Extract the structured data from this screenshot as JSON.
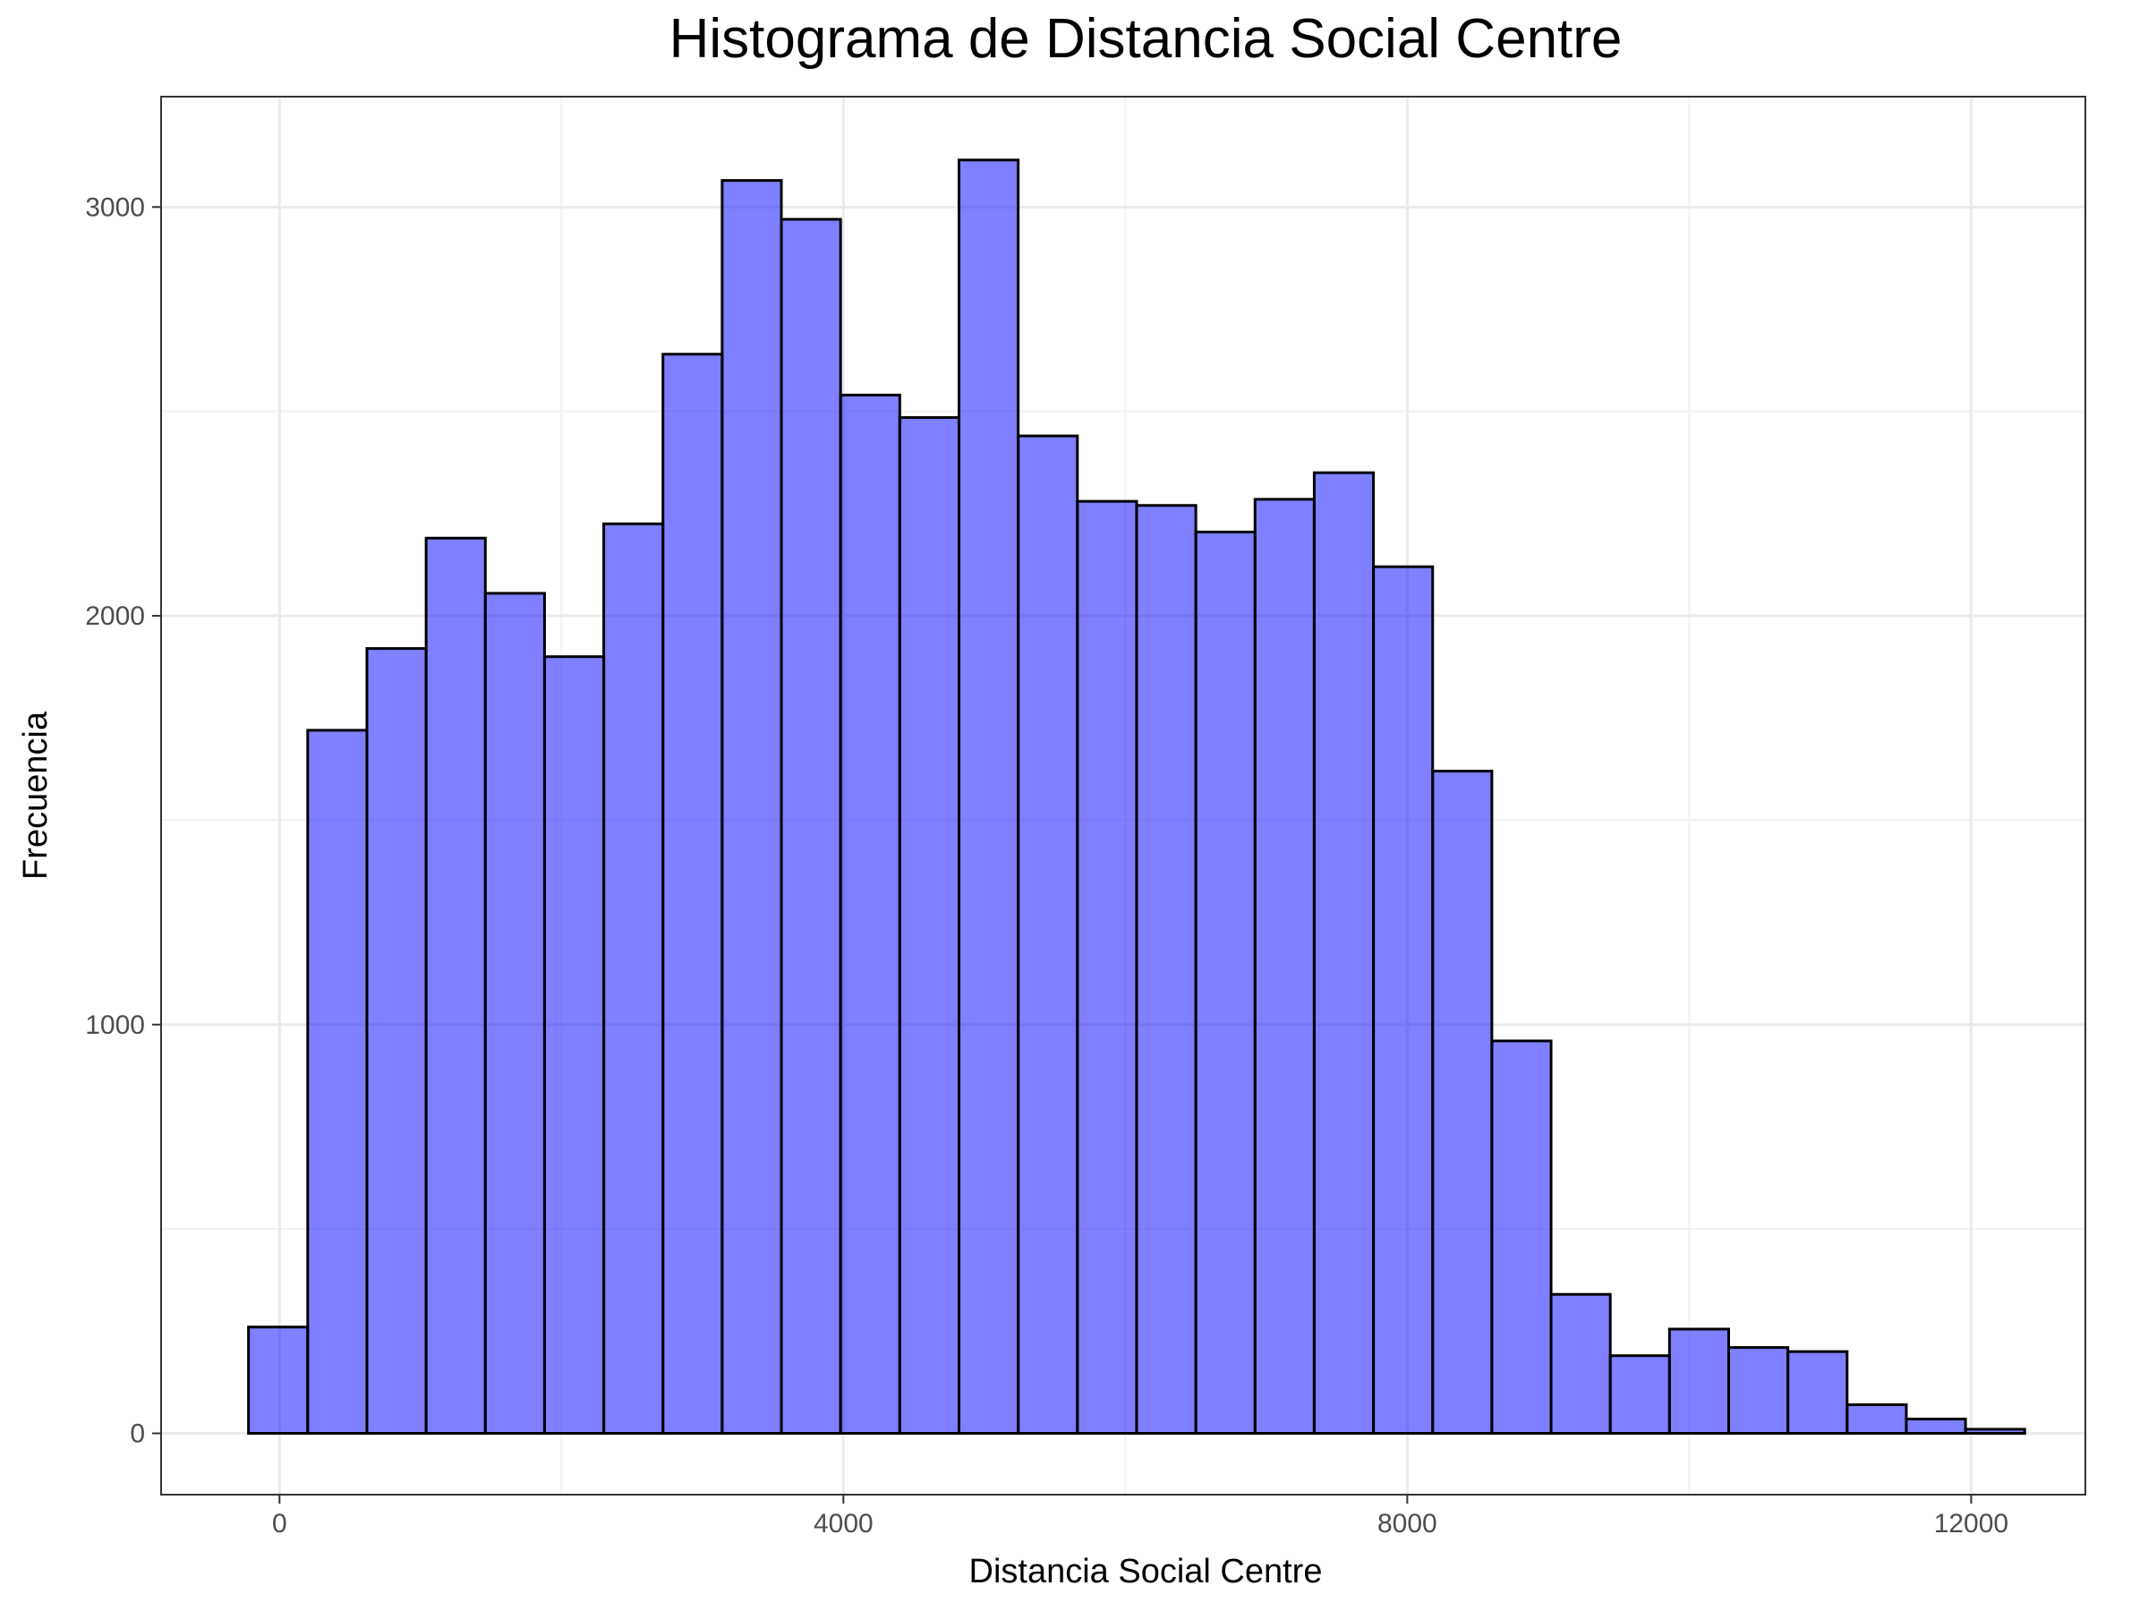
{
  "chart_data": {
    "type": "bar",
    "title": "Histograma de Distancia Social Centre",
    "xlabel": "Distancia Social Centre",
    "ylabel": "Frecuencia",
    "xlim": [
      -840,
      12810
    ],
    "ylim": [
      -150,
      3270
    ],
    "x_ticks": [
      0,
      4000,
      8000,
      12000
    ],
    "x_tick_labels": [
      "0",
      "4000",
      "8000",
      "12000"
    ],
    "x_minor_ticks": [
      2000,
      6000,
      10000
    ],
    "y_ticks": [
      0,
      1000,
      2000,
      3000
    ],
    "y_tick_labels": [
      "0",
      "1000",
      "2000",
      "3000"
    ],
    "y_minor_ticks": [
      500,
      1500,
      2500
    ],
    "grid": true,
    "bar_fill": "#0000ff",
    "bar_fill_opacity": 0.5,
    "bar_outline": "#000000",
    "bins": [
      {
        "start": -220,
        "end": 200,
        "count": 260
      },
      {
        "start": 200,
        "end": 620,
        "count": 1720
      },
      {
        "start": 620,
        "end": 1040,
        "count": 1920
      },
      {
        "start": 1040,
        "end": 1460,
        "count": 2190
      },
      {
        "start": 1460,
        "end": 1880,
        "count": 2055
      },
      {
        "start": 1880,
        "end": 2300,
        "count": 1900
      },
      {
        "start": 2300,
        "end": 2720,
        "count": 2225
      },
      {
        "start": 2720,
        "end": 3140,
        "count": 2640
      },
      {
        "start": 3140,
        "end": 3560,
        "count": 3065
      },
      {
        "start": 3560,
        "end": 3980,
        "count": 2970
      },
      {
        "start": 3980,
        "end": 4400,
        "count": 2540
      },
      {
        "start": 4400,
        "end": 4820,
        "count": 2485
      },
      {
        "start": 4820,
        "end": 5240,
        "count": 3115
      },
      {
        "start": 5240,
        "end": 5660,
        "count": 2440
      },
      {
        "start": 5660,
        "end": 6080,
        "count": 2280
      },
      {
        "start": 6080,
        "end": 6500,
        "count": 2270
      },
      {
        "start": 6500,
        "end": 6920,
        "count": 2205
      },
      {
        "start": 6920,
        "end": 7340,
        "count": 2285
      },
      {
        "start": 7340,
        "end": 7760,
        "count": 2350
      },
      {
        "start": 7760,
        "end": 8180,
        "count": 2120
      },
      {
        "start": 8180,
        "end": 8600,
        "count": 1620
      },
      {
        "start": 8600,
        "end": 9020,
        "count": 960
      },
      {
        "start": 9020,
        "end": 9440,
        "count": 340
      },
      {
        "start": 9440,
        "end": 9860,
        "count": 190
      },
      {
        "start": 9860,
        "end": 10280,
        "count": 255
      },
      {
        "start": 10280,
        "end": 10700,
        "count": 210
      },
      {
        "start": 10700,
        "end": 11120,
        "count": 200
      },
      {
        "start": 11120,
        "end": 11540,
        "count": 70
      },
      {
        "start": 11540,
        "end": 11960,
        "count": 35
      },
      {
        "start": 11960,
        "end": 12380,
        "count": 10
      }
    ]
  }
}
